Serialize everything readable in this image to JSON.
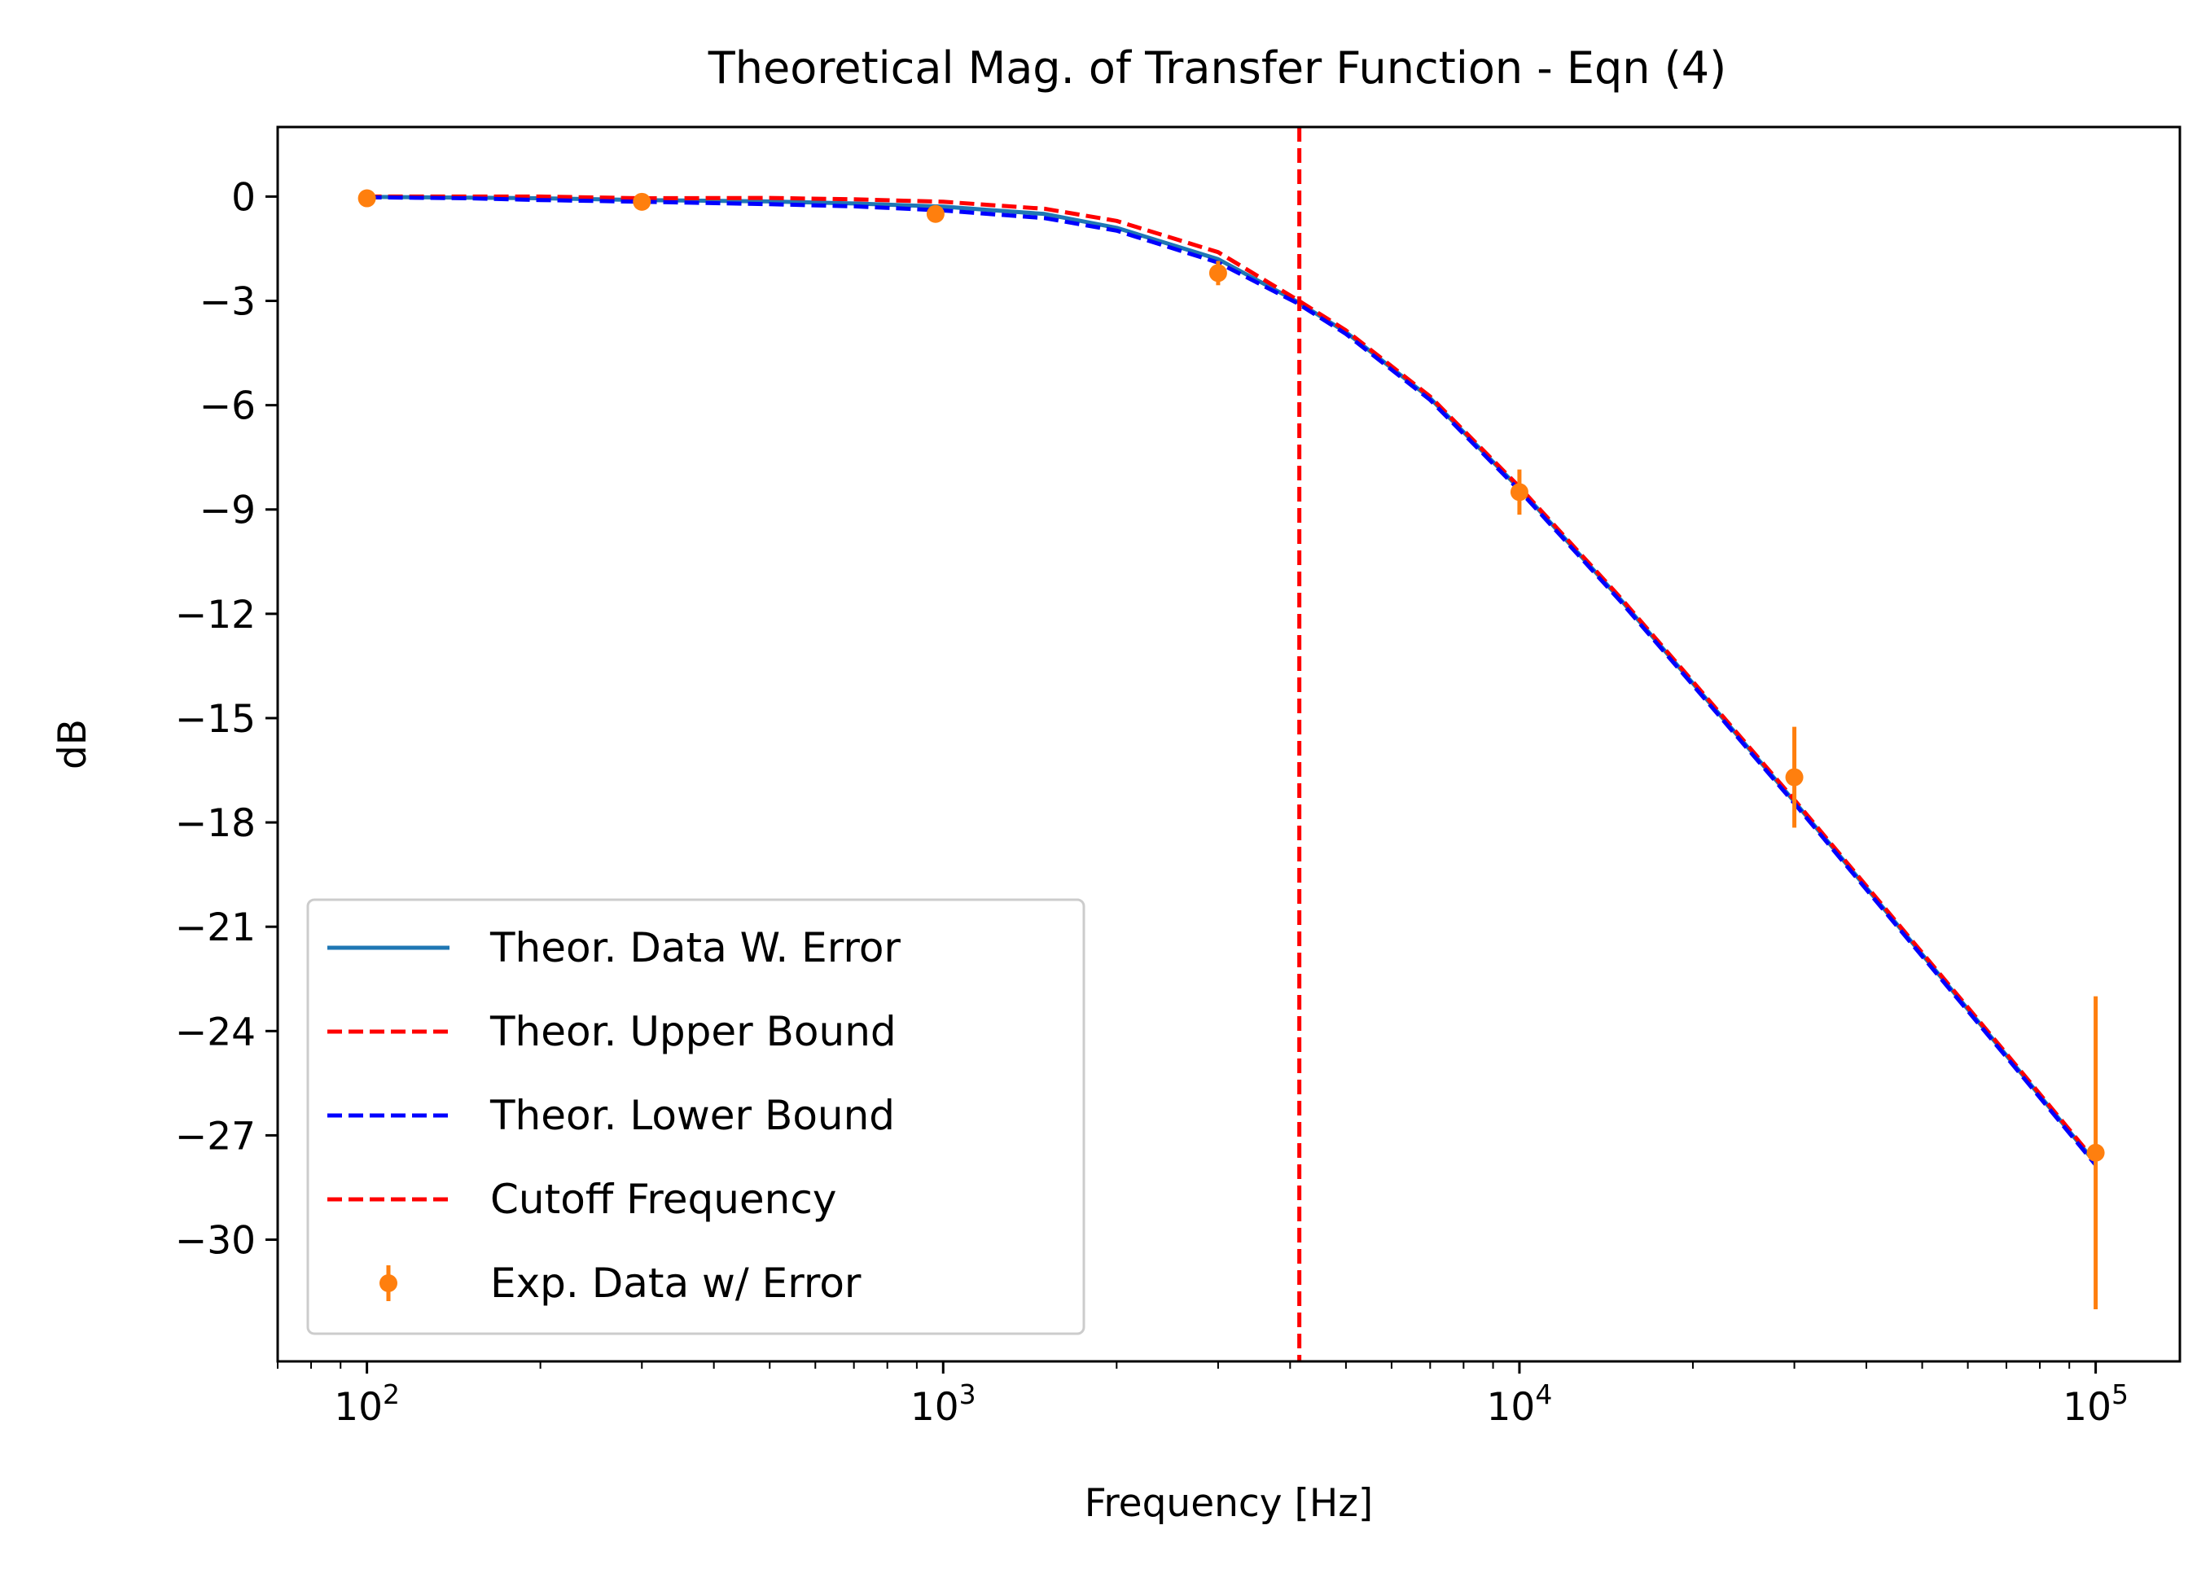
{
  "chart_data": {
    "type": "line",
    "title": "Theoretical Mag. of Transfer Function - Eqn (4)",
    "xlabel": "Frequency [Hz]",
    "ylabel": "dB",
    "xscale": "log",
    "xlim": [
      70,
      140000
    ],
    "ylim": [
      -33.5,
      2
    ],
    "x_ticks": [
      {
        "value": 100,
        "mantissa": "10",
        "exp": "2"
      },
      {
        "value": 1000,
        "mantissa": "10",
        "exp": "3"
      },
      {
        "value": 10000,
        "mantissa": "10",
        "exp": "4"
      },
      {
        "value": 100000,
        "mantissa": "10",
        "exp": "5"
      }
    ],
    "y_ticks": [
      0,
      -3,
      -6,
      -9,
      -12,
      -15,
      -18,
      -21,
      -24,
      -27,
      -30
    ],
    "y_tick_labels": [
      "0",
      "−3",
      "−6",
      "−9",
      "−12",
      "−15",
      "−18",
      "−21",
      "−24",
      "−27",
      "−30"
    ],
    "grid": false,
    "legend_position": "lower-left",
    "colors": {
      "theor": "#1f77b4",
      "upper": "#ff0000",
      "lower": "#0000ff",
      "cutoff": "#ff0000",
      "exp": "#ff7f0e"
    },
    "series": [
      {
        "name": "Theor. Data W. Error",
        "style": "solid",
        "x": [
          100,
          150,
          200,
          300,
          500,
          700,
          1000,
          1500,
          2000,
          3000,
          4100,
          5000,
          7000,
          10000,
          15000,
          20000,
          30000,
          50000,
          70000,
          100000
        ],
        "y": [
          -0.01,
          -0.03,
          -0.05,
          -0.1,
          -0.14,
          -0.2,
          -0.29,
          -0.5,
          -0.9,
          -1.8,
          -3.01,
          -3.9,
          -5.8,
          -8.4,
          -11.6,
          -14.0,
          -17.4,
          -21.8,
          -24.7,
          -27.8
        ]
      },
      {
        "name": "Theor. Upper Bound",
        "style": "dashed",
        "x": [
          100,
          150,
          200,
          300,
          500,
          700,
          1000,
          1500,
          2000,
          3000,
          4100,
          5000,
          7000,
          10000,
          15000,
          20000,
          30000,
          50000,
          70000,
          100000
        ],
        "y": [
          0,
          0,
          0,
          -0.05,
          -0.04,
          -0.08,
          -0.15,
          -0.35,
          -0.7,
          -1.6,
          -2.95,
          -3.85,
          -5.75,
          -8.35,
          -11.55,
          -13.95,
          -17.35,
          -21.75,
          -24.65,
          -27.75
        ]
      },
      {
        "name": "Theor. Lower Bound",
        "style": "dashed",
        "x": [
          100,
          150,
          200,
          300,
          500,
          700,
          1000,
          1500,
          2000,
          3000,
          4100,
          5000,
          7000,
          10000,
          15000,
          20000,
          30000,
          50000,
          70000,
          100000
        ],
        "y": [
          -0.02,
          -0.05,
          -0.1,
          -0.15,
          -0.22,
          -0.28,
          -0.4,
          -0.62,
          -0.98,
          -1.9,
          -3.05,
          -3.95,
          -5.85,
          -8.45,
          -11.65,
          -14.05,
          -17.45,
          -21.85,
          -24.75,
          -27.85
        ]
      }
    ],
    "cutoff": {
      "name": "Cutoff Frequency",
      "x": 4150
    },
    "experimental": {
      "name": "Exp. Data w/ Error",
      "x": [
        100,
        300,
        970,
        3000,
        10000,
        30000,
        100000
      ],
      "y": [
        -0.05,
        -0.15,
        -0.5,
        -2.2,
        -8.5,
        -16.7,
        -27.5
      ],
      "err": [
        0.2,
        0.15,
        0.25,
        0.35,
        0.65,
        1.45,
        4.5
      ]
    }
  }
}
